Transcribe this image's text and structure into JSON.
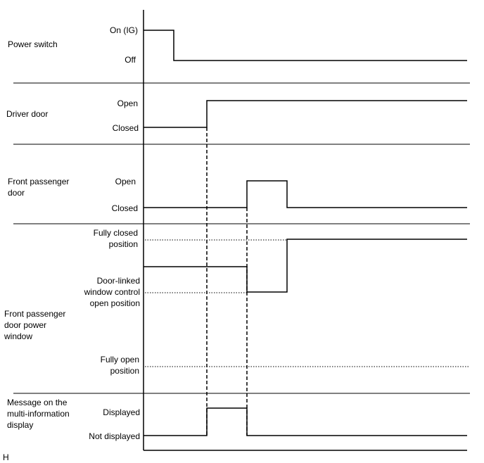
{
  "signals": [
    {
      "name": "Power switch",
      "levels": [
        "On (IG)",
        "Off"
      ]
    },
    {
      "name": "Driver door",
      "levels": [
        "Open",
        "Closed"
      ]
    },
    {
      "name": [
        "Front passenger",
        "door"
      ],
      "levels": [
        "Open",
        "Closed"
      ]
    },
    {
      "name": [
        "Front passenger",
        "door power",
        "window"
      ],
      "levels": [
        [
          "Fully closed",
          "position"
        ],
        [
          "Door-linked",
          "window control",
          "open position"
        ],
        [
          "Fully open",
          "position"
        ]
      ]
    },
    {
      "name": [
        "Message on the",
        "multi-information",
        "display"
      ],
      "levels": [
        "Displayed",
        "Not displayed"
      ]
    }
  ],
  "figure_code": "H",
  "colors": {
    "line": "#000000",
    "separator": "#000000"
  }
}
